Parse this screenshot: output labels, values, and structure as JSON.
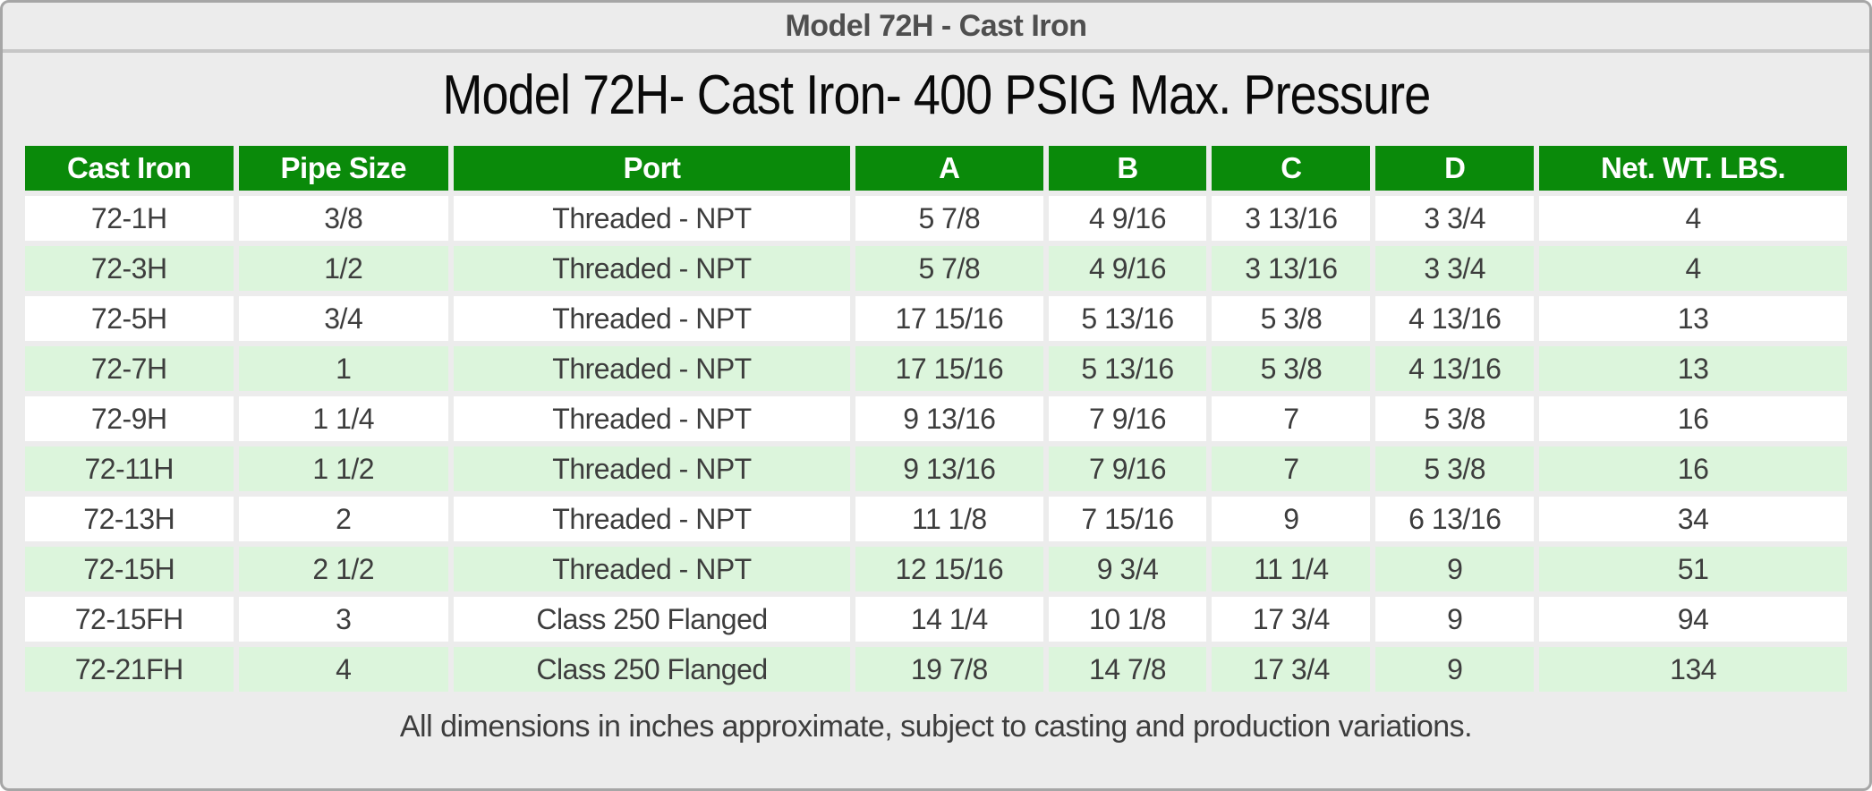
{
  "panel": {
    "header_title": "Model 72H - Cast Iron"
  },
  "page": {
    "title": "Model 72H- Cast Iron- 400 PSIG Max. Pressure",
    "footnote": "All dimensions in inches approximate, subject to casting and production variations."
  },
  "table": {
    "columns": [
      "Cast Iron",
      "Pipe Size",
      "Port",
      "A",
      "B",
      "C",
      "D",
      "Net. WT. LBS."
    ],
    "rows": [
      [
        "72-1H",
        "3/8",
        "Threaded - NPT",
        "5 7/8",
        "4 9/16",
        "3 13/16",
        "3 3/4",
        "4"
      ],
      [
        "72-3H",
        "1/2",
        "Threaded - NPT",
        "5 7/8",
        "4 9/16",
        "3 13/16",
        "3 3/4",
        "4"
      ],
      [
        "72-5H",
        "3/4",
        "Threaded - NPT",
        "17 15/16",
        "5 13/16",
        "5 3/8",
        "4 13/16",
        "13"
      ],
      [
        "72-7H",
        "1",
        "Threaded - NPT",
        "17 15/16",
        "5 13/16",
        "5 3/8",
        "4 13/16",
        "13"
      ],
      [
        "72-9H",
        "1 1/4",
        "Threaded - NPT",
        "9 13/16",
        "7 9/16",
        "7",
        "5 3/8",
        "16"
      ],
      [
        "72-11H",
        "1 1/2",
        "Threaded - NPT",
        "9 13/16",
        "7 9/16",
        "7",
        "5 3/8",
        "16"
      ],
      [
        "72-13H",
        "2",
        "Threaded - NPT",
        "11 1/8",
        "7 15/16",
        "9",
        "6 13/16",
        "34"
      ],
      [
        "72-15H",
        "2 1/2",
        "Threaded - NPT",
        "12 15/16",
        "9 3/4",
        "11 1/4",
        "9",
        "51"
      ],
      [
        "72-15FH",
        "3",
        "Class 250 Flanged",
        "14 1/4",
        "10 1/8",
        "17 3/4",
        "9",
        "94"
      ],
      [
        "72-21FH",
        "4",
        "Class 250 Flanged",
        "19 7/8",
        "14 7/8",
        "17 3/4",
        "9",
        "134"
      ]
    ]
  },
  "colors": {
    "header_green": "#0a8a0a",
    "row_alt_green": "#dcf5dc",
    "panel_background": "#ececec",
    "panel_border": "#a6a6a6",
    "header_text": "#ffffff",
    "body_text": "#3d3d3d"
  }
}
